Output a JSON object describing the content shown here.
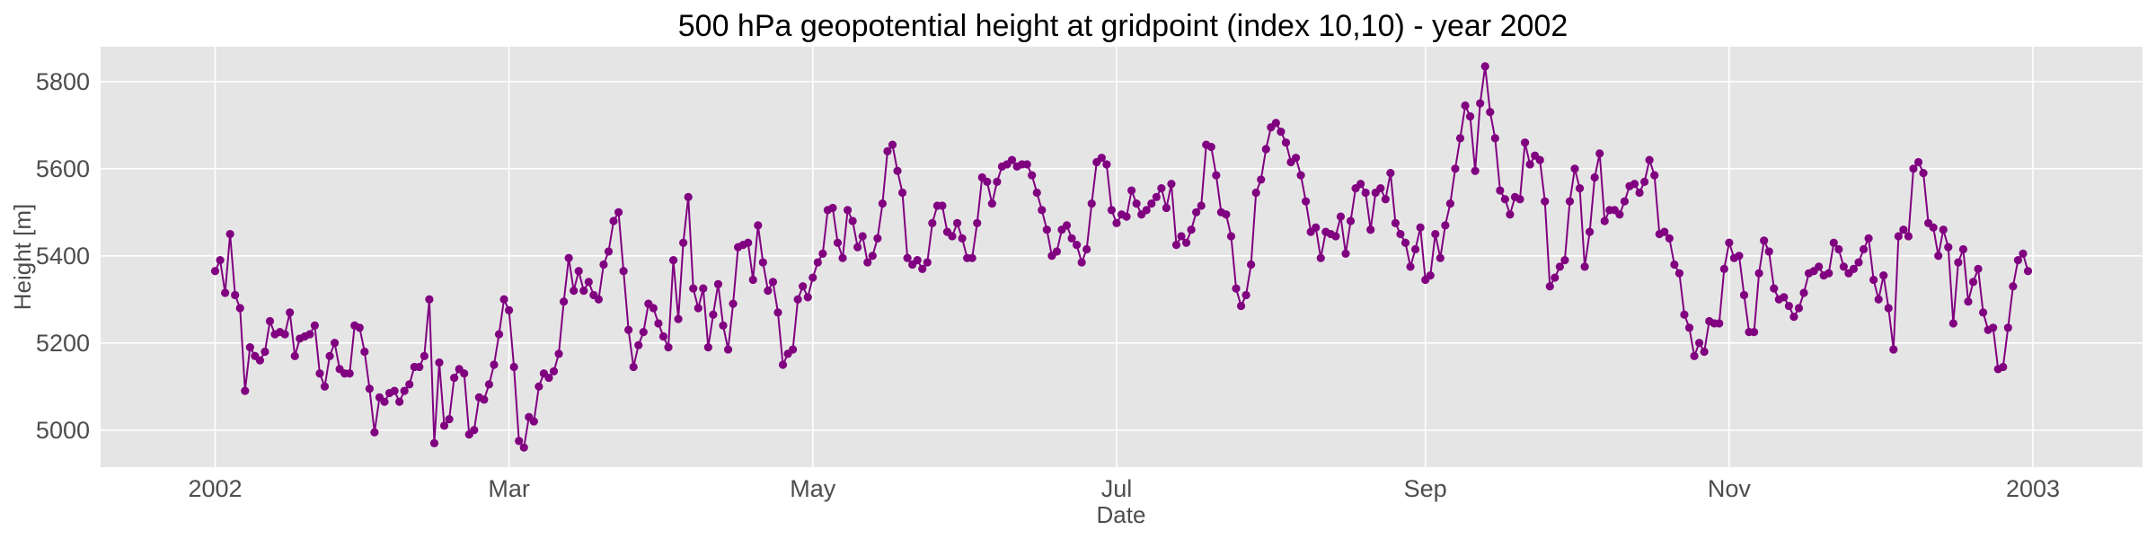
{
  "chart_data": {
    "type": "line",
    "title": "500 hPa geopotential height at gridpoint (index 10,10) - year 2002",
    "xlabel": "Date",
    "ylabel": "Height [m]",
    "ylim": [
      4915,
      5880
    ],
    "yticks": [
      5000,
      5200,
      5400,
      5600,
      5800
    ],
    "xlim": [
      "2001-12-09",
      "2003-01-23"
    ],
    "xticks": [
      {
        "date": "2002-01-01",
        "label": "2002"
      },
      {
        "date": "2002-03-01",
        "label": "Mar"
      },
      {
        "date": "2002-05-01",
        "label": "May"
      },
      {
        "date": "2002-07-01",
        "label": "Jul"
      },
      {
        "date": "2002-09-01",
        "label": "Sep"
      },
      {
        "date": "2002-11-01",
        "label": "Nov"
      },
      {
        "date": "2003-01-01",
        "label": "2003"
      }
    ],
    "grid": true,
    "series": [
      {
        "color": "#800080",
        "marker": "circle",
        "x_start": "2002-01-01",
        "x_end": "2002-12-31",
        "values": [
          5365,
          5390,
          5315,
          5450,
          5310,
          5280,
          5090,
          5190,
          5170,
          5160,
          5180,
          5250,
          5220,
          5225,
          5220,
          5270,
          5170,
          5210,
          5215,
          5220,
          5240,
          5130,
          5100,
          5170,
          5200,
          5140,
          5130,
          5130,
          5240,
          5235,
          5180,
          5095,
          4995,
          5075,
          5065,
          5085,
          5090,
          5065,
          5090,
          5105,
          5145,
          5145,
          5170,
          5300,
          4970,
          5155,
          5010,
          5025,
          5120,
          5140,
          5130,
          4990,
          5000,
          5075,
          5070,
          5105,
          5150,
          5220,
          5300,
          5275,
          5145,
          4975,
          4960,
          5030,
          5020,
          5100,
          5130,
          5120,
          5135,
          5175,
          5295,
          5395,
          5320,
          5365,
          5320,
          5340,
          5310,
          5300,
          5380,
          5410,
          5480,
          5500,
          5365,
          5230,
          5145,
          5195,
          5225,
          5290,
          5280,
          5245,
          5215,
          5190,
          5390,
          5255,
          5430,
          5535,
          5325,
          5280,
          5325,
          5190,
          5265,
          5335,
          5240,
          5185,
          5290,
          5420,
          5425,
          5430,
          5345,
          5470,
          5385,
          5320,
          5340,
          5270,
          5150,
          5175,
          5185,
          5300,
          5330,
          5305,
          5350,
          5385,
          5405,
          5505,
          5510,
          5430,
          5395,
          5505,
          5480,
          5420,
          5445,
          5385,
          5400,
          5440,
          5520,
          5640,
          5655,
          5595,
          5545,
          5395,
          5380,
          5390,
          5370,
          5385,
          5475,
          5515,
          5515,
          5455,
          5445,
          5475,
          5440,
          5395,
          5395,
          5475,
          5580,
          5570,
          5520,
          5570,
          5605,
          5610,
          5620,
          5605,
          5610,
          5610,
          5585,
          5545,
          5505,
          5460,
          5400,
          5410,
          5460,
          5470,
          5440,
          5425,
          5385,
          5415,
          5520,
          5615,
          5625,
          5610,
          5505,
          5475,
          5495,
          5490,
          5550,
          5520,
          5495,
          5505,
          5520,
          5535,
          5555,
          5510,
          5565,
          5425,
          5445,
          5430,
          5460,
          5500,
          5515,
          5655,
          5650,
          5585,
          5500,
          5495,
          5445,
          5325,
          5285,
          5310,
          5380,
          5545,
          5575,
          5645,
          5695,
          5705,
          5685,
          5660,
          5615,
          5625,
          5585,
          5525,
          5455,
          5465,
          5395,
          5455,
          5450,
          5445,
          5490,
          5405,
          5480,
          5555,
          5565,
          5545,
          5460,
          5545,
          5555,
          5530,
          5590,
          5475,
          5450,
          5430,
          5375,
          5415,
          5465,
          5345,
          5355,
          5450,
          5395,
          5470,
          5520,
          5600,
          5670,
          5745,
          5720,
          5595,
          5750,
          5835,
          5730,
          5670,
          5550,
          5530,
          5495,
          5535,
          5530,
          5660,
          5610,
          5630,
          5620,
          5525,
          5330,
          5350,
          5375,
          5390,
          5525,
          5600,
          5555,
          5375,
          5455,
          5580,
          5635,
          5480,
          5505,
          5505,
          5495,
          5525,
          5560,
          5565,
          5545,
          5570,
          5620,
          5585,
          5450,
          5455,
          5440,
          5380,
          5360,
          5265,
          5235,
          5170,
          5200,
          5180,
          5250,
          5245,
          5245,
          5370,
          5430,
          5395,
          5400,
          5310,
          5225,
          5225,
          5360,
          5435,
          5410,
          5325,
          5300,
          5305,
          5285,
          5260,
          5280,
          5315,
          5360,
          5365,
          5375,
          5355,
          5360,
          5430,
          5415,
          5375,
          5360,
          5370,
          5385,
          5415,
          5440,
          5345,
          5300,
          5355,
          5280,
          5185,
          5445,
          5460,
          5445,
          5600,
          5615,
          5590,
          5475,
          5465,
          5400,
          5460,
          5420,
          5245,
          5385,
          5415,
          5295,
          5340,
          5370,
          5270,
          5230,
          5235,
          5140,
          5145,
          5235,
          5330,
          5390,
          5405,
          5365
        ]
      }
    ]
  }
}
